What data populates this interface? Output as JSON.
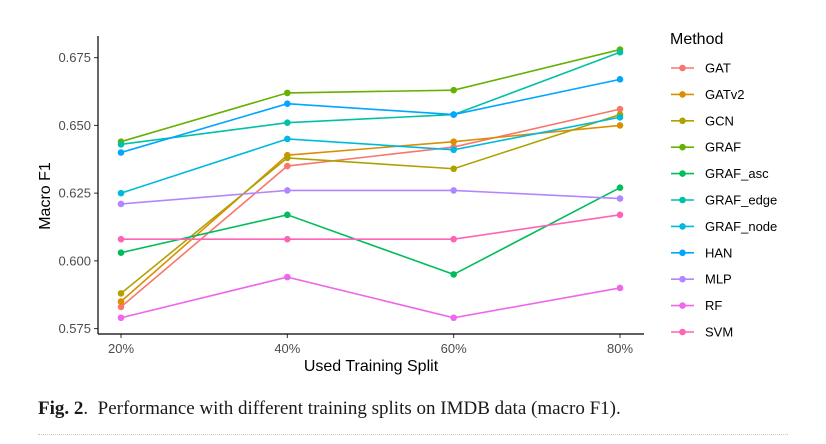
{
  "chart_data": {
    "type": "line",
    "title": "",
    "xlabel": "Used Training Split",
    "ylabel": "Macro F1",
    "categories": [
      "20%",
      "40%",
      "60%",
      "80%"
    ],
    "ylim": [
      0.573,
      0.683
    ],
    "yticks": [
      0.575,
      0.6,
      0.625,
      0.65,
      0.675
    ],
    "ytick_labels": [
      "0.575",
      "0.600",
      "0.625",
      "0.650",
      "0.675"
    ],
    "grid": false,
    "legend_title": "Method",
    "legend_position": "right",
    "series": [
      {
        "name": "GAT",
        "color": "#F8766D",
        "values": [
          0.583,
          0.635,
          0.642,
          0.656
        ]
      },
      {
        "name": "GATv2",
        "color": "#DB8E00",
        "values": [
          0.585,
          0.639,
          0.644,
          0.65
        ]
      },
      {
        "name": "GCN",
        "color": "#AEA200",
        "values": [
          0.588,
          0.638,
          0.634,
          0.654
        ]
      },
      {
        "name": "GRAF",
        "color": "#64B200",
        "values": [
          0.644,
          0.662,
          0.663,
          0.678
        ]
      },
      {
        "name": "GRAF_asc",
        "color": "#00BD5C",
        "values": [
          0.603,
          0.617,
          0.595,
          0.627
        ]
      },
      {
        "name": "GRAF_edge",
        "color": "#00C1A7",
        "values": [
          0.643,
          0.651,
          0.654,
          0.677
        ]
      },
      {
        "name": "GRAF_node",
        "color": "#00BADE",
        "values": [
          0.625,
          0.645,
          0.641,
          0.653
        ]
      },
      {
        "name": "HAN",
        "color": "#00A6FF",
        "values": [
          0.64,
          0.658,
          0.654,
          0.667
        ]
      },
      {
        "name": "MLP",
        "color": "#B385FF",
        "values": [
          0.621,
          0.626,
          0.626,
          0.623
        ]
      },
      {
        "name": "RF",
        "color": "#EF67EB",
        "values": [
          0.579,
          0.594,
          0.579,
          0.59
        ]
      },
      {
        "name": "SVM",
        "color": "#FF63B6",
        "values": [
          0.608,
          0.608,
          0.608,
          0.617
        ]
      }
    ]
  },
  "caption": {
    "label": "Fig. 2",
    "text": "Performance with different training splits on IMDB data (macro F1)."
  }
}
